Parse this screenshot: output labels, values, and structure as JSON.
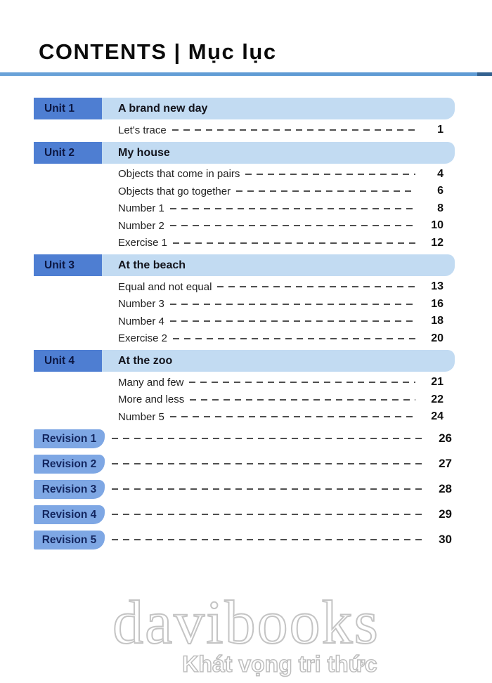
{
  "header": {
    "title_en": "CONTENTS",
    "separator": "|",
    "title_vi": "Mục lục"
  },
  "units": [
    {
      "label": "Unit 1",
      "title": "A brand new day",
      "items": [
        {
          "label": "Let's trace",
          "page": "1"
        }
      ]
    },
    {
      "label": "Unit 2",
      "title": "My house",
      "items": [
        {
          "label": "Objects that come in pairs",
          "page": "4"
        },
        {
          "label": "Objects that go together",
          "page": "6"
        },
        {
          "label": "Number 1",
          "page": "8"
        },
        {
          "label": "Number 2",
          "page": "10"
        },
        {
          "label": "Exercise 1",
          "page": "12"
        }
      ]
    },
    {
      "label": "Unit 3",
      "title": "At the beach",
      "items": [
        {
          "label": "Equal and not equal",
          "page": "13"
        },
        {
          "label": "Number 3",
          "page": "16"
        },
        {
          "label": "Number 4",
          "page": "18"
        },
        {
          "label": "Exercise 2",
          "page": "20"
        }
      ]
    },
    {
      "label": "Unit 4",
      "title": "At the zoo",
      "items": [
        {
          "label": "Many and few",
          "page": "21"
        },
        {
          "label": "More and less",
          "page": "22"
        },
        {
          "label": "Number 5",
          "page": "24"
        }
      ]
    }
  ],
  "revisions": [
    {
      "label": "Revision 1",
      "page": "26"
    },
    {
      "label": "Revision 2",
      "page": "27"
    },
    {
      "label": "Revision 3",
      "page": "28"
    },
    {
      "label": "Revision 4",
      "page": "29"
    },
    {
      "label": "Revision 5",
      "page": "30"
    }
  ],
  "watermark": {
    "line1": "davibooks",
    "line2": "Khát vọng tri thức"
  },
  "colors": {
    "unit_label_box": "#4e7ed2",
    "unit_title_bar": "#c2dbf2",
    "revision_box": "#7ea7e4",
    "header_rule": "#5f9bd4",
    "dash_leader": "#4f4f4f",
    "watermark_outline": "#c4c4c4"
  }
}
